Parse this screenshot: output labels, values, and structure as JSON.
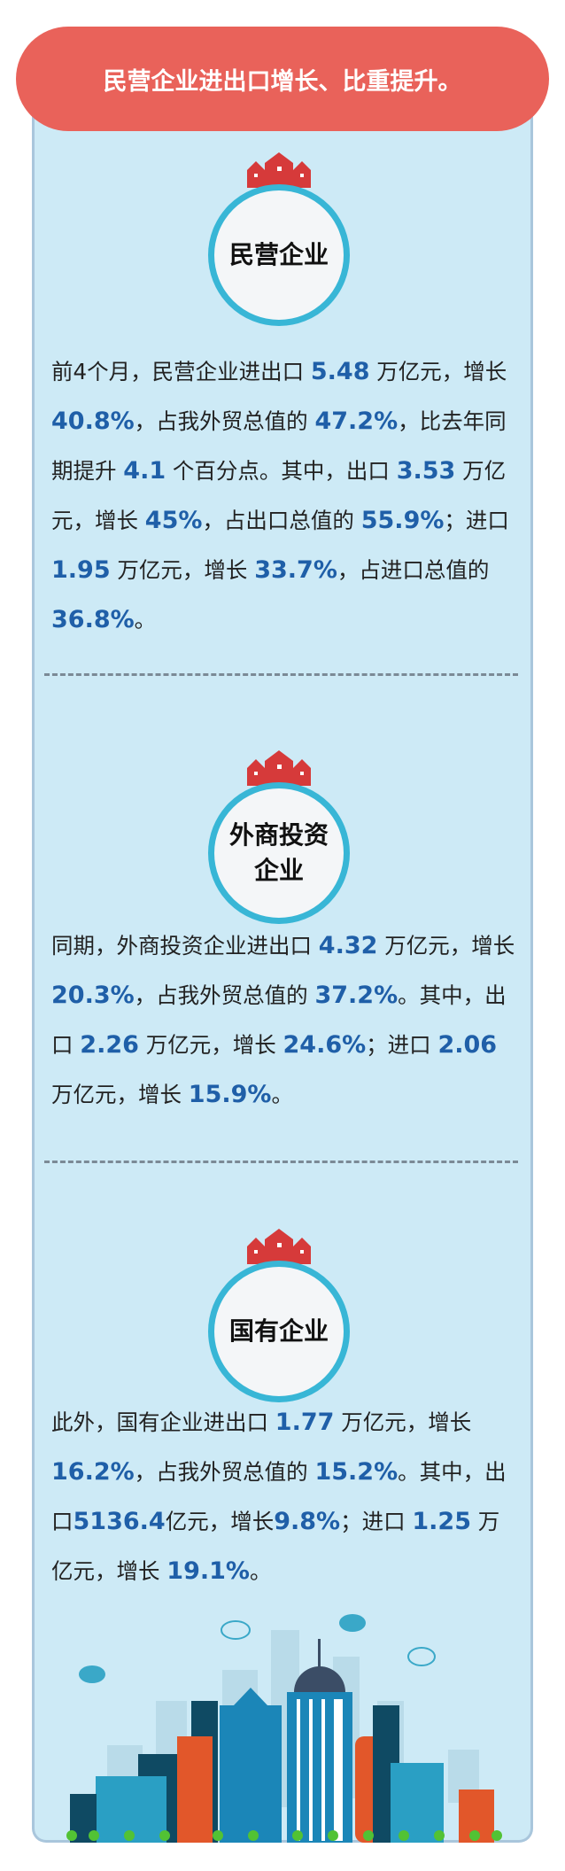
{
  "title": "民营企业进出口增长、比重提升。",
  "sections": [
    {
      "badge": "民营企业",
      "paragraph": [
        [
          "前4个月，民营企业进出口 ",
          ""
        ],
        [
          "5.48",
          "b"
        ],
        [
          " 万亿元，增长 ",
          ""
        ],
        [
          "40.8%",
          "b"
        ],
        [
          "，占我外贸总值的 ",
          ""
        ],
        [
          "47.2%",
          "b"
        ],
        [
          "，比去年同期提升 ",
          ""
        ],
        [
          "4.1",
          "b"
        ],
        [
          " 个百分点。其中，出口 ",
          ""
        ],
        [
          "3.53",
          "b"
        ],
        [
          " 万亿元，增长 ",
          ""
        ],
        [
          "45%",
          "b"
        ],
        [
          "，占出口总值的 ",
          ""
        ],
        [
          "55.9%",
          "b"
        ],
        [
          "；进口 ",
          ""
        ],
        [
          "1.95",
          "b"
        ],
        [
          " 万亿元，增长 ",
          ""
        ],
        [
          "33.7%",
          "b"
        ],
        [
          "，占进口总值的 ",
          ""
        ],
        [
          "36.8%",
          "b"
        ],
        [
          "。",
          ""
        ]
      ]
    },
    {
      "badge": "外商投资企业",
      "paragraph": [
        [
          "同期，外商投资企业进出口 ",
          ""
        ],
        [
          "4.32",
          "b"
        ],
        [
          " 万亿元，增长 ",
          ""
        ],
        [
          "20.3%",
          "b"
        ],
        [
          "，占我外贸总值的 ",
          ""
        ],
        [
          "37.2%",
          "b"
        ],
        [
          "。其中，出口 ",
          ""
        ],
        [
          "2.26",
          "b"
        ],
        [
          " 万亿元，增长 ",
          ""
        ],
        [
          "24.6%",
          "b"
        ],
        [
          "；进口 ",
          ""
        ],
        [
          "2.06",
          "b"
        ],
        [
          " 万亿元，增长 ",
          ""
        ],
        [
          "15.9%",
          "b"
        ],
        [
          "。",
          ""
        ]
      ]
    },
    {
      "badge": "国有企业",
      "paragraph": [
        [
          "此外，国有企业进出口 ",
          ""
        ],
        [
          "1.77",
          "b"
        ],
        [
          " 万亿元，增长 ",
          ""
        ],
        [
          "16.2%",
          "b"
        ],
        [
          "，占我外贸总值的 ",
          ""
        ],
        [
          "15.2%",
          "b"
        ],
        [
          "。其中，出口",
          ""
        ],
        [
          "5136.4",
          "b"
        ],
        [
          "亿元，增长",
          ""
        ],
        [
          "9.8%",
          "b"
        ],
        [
          "；进口 ",
          ""
        ],
        [
          "1.25",
          "b"
        ],
        [
          " 万亿元，增长 ",
          ""
        ],
        [
          "19.1%",
          "b"
        ],
        [
          "。",
          ""
        ]
      ]
    }
  ],
  "colors": {
    "banner": "#e9625a",
    "panel": "#cdeaf6",
    "highlight": "#1f5fa8",
    "ring": "#38b6d6"
  }
}
